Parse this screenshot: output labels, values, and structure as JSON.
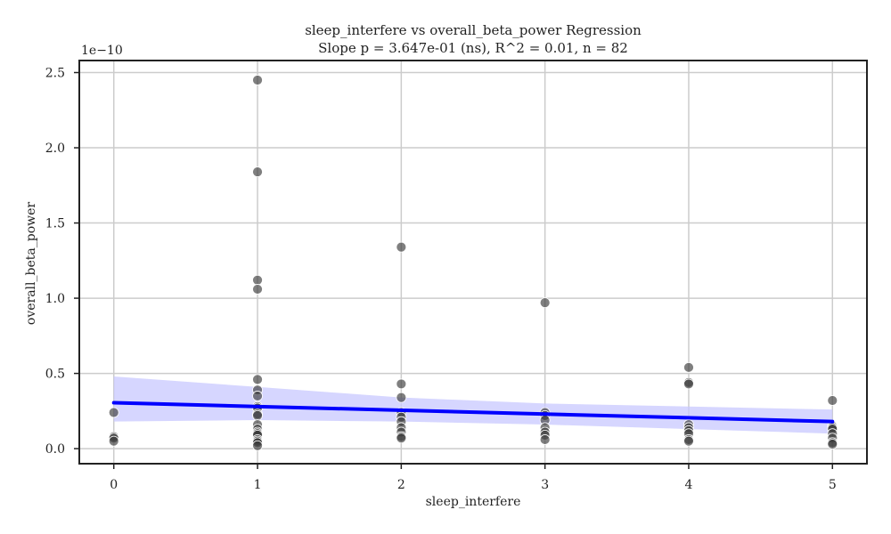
{
  "chart_data": {
    "type": "scatter",
    "title_line1": "sleep_interfere vs overall_beta_power Regression",
    "title_line2": "Slope p = 3.647e-01 (ns), R^2 = 0.01, n = 82",
    "xlabel": "sleep_interfere",
    "ylabel": "overall_beta_power",
    "y_exponent_label": "1e−10",
    "xlim": [
      -0.24,
      5.24
    ],
    "ylim": [
      -0.1,
      2.58
    ],
    "x_ticks": [
      0,
      1,
      2,
      3,
      4,
      5
    ],
    "x_tick_labels": [
      "0",
      "1",
      "2",
      "3",
      "4",
      "5"
    ],
    "y_ticks": [
      0.0,
      0.5,
      1.0,
      1.5,
      2.0,
      2.5
    ],
    "y_tick_labels": [
      "0.0",
      "0.5",
      "1.0",
      "1.5",
      "2.0",
      "2.5"
    ],
    "grid": true,
    "colors": {
      "points": "#3a3a3a",
      "regression_line": "#0000ff",
      "confidence_band": "#c8c8ff",
      "grid": "#cccccc",
      "axes": "#222222"
    },
    "points": [
      {
        "x": 0,
        "y": 0.24
      },
      {
        "x": 0,
        "y": 0.08
      },
      {
        "x": 0,
        "y": 0.07
      },
      {
        "x": 0,
        "y": 0.05
      },
      {
        "x": 1,
        "y": 2.45
      },
      {
        "x": 1,
        "y": 1.84
      },
      {
        "x": 1,
        "y": 1.12
      },
      {
        "x": 1,
        "y": 1.06
      },
      {
        "x": 1,
        "y": 0.46
      },
      {
        "x": 1,
        "y": 0.39
      },
      {
        "x": 1,
        "y": 0.35
      },
      {
        "x": 1,
        "y": 0.28
      },
      {
        "x": 1,
        "y": 0.27
      },
      {
        "x": 1,
        "y": 0.23
      },
      {
        "x": 1,
        "y": 0.22
      },
      {
        "x": 1,
        "y": 0.16
      },
      {
        "x": 1,
        "y": 0.13
      },
      {
        "x": 1,
        "y": 0.11
      },
      {
        "x": 1,
        "y": 0.1
      },
      {
        "x": 1,
        "y": 0.09
      },
      {
        "x": 1,
        "y": 0.06
      },
      {
        "x": 1,
        "y": 0.05
      },
      {
        "x": 1,
        "y": 0.04
      },
      {
        "x": 1,
        "y": 0.02
      },
      {
        "x": 2,
        "y": 1.34
      },
      {
        "x": 2,
        "y": 0.43
      },
      {
        "x": 2,
        "y": 0.34
      },
      {
        "x": 2,
        "y": 0.24
      },
      {
        "x": 2,
        "y": 0.21
      },
      {
        "x": 2,
        "y": 0.18
      },
      {
        "x": 2,
        "y": 0.14
      },
      {
        "x": 2,
        "y": 0.11
      },
      {
        "x": 2,
        "y": 0.08
      },
      {
        "x": 2,
        "y": 0.07
      },
      {
        "x": 3,
        "y": 0.97
      },
      {
        "x": 3,
        "y": 0.24
      },
      {
        "x": 3,
        "y": 0.22
      },
      {
        "x": 3,
        "y": 0.19
      },
      {
        "x": 3,
        "y": 0.14
      },
      {
        "x": 3,
        "y": 0.11
      },
      {
        "x": 3,
        "y": 0.09
      },
      {
        "x": 3,
        "y": 0.06
      },
      {
        "x": 4,
        "y": 0.54
      },
      {
        "x": 4,
        "y": 0.44
      },
      {
        "x": 4,
        "y": 0.43
      },
      {
        "x": 4,
        "y": 0.16
      },
      {
        "x": 4,
        "y": 0.14
      },
      {
        "x": 4,
        "y": 0.12
      },
      {
        "x": 4,
        "y": 0.1
      },
      {
        "x": 4,
        "y": 0.06
      },
      {
        "x": 4,
        "y": 0.05
      },
      {
        "x": 5,
        "y": 0.32
      },
      {
        "x": 5,
        "y": 0.15
      },
      {
        "x": 5,
        "y": 0.14
      },
      {
        "x": 5,
        "y": 0.13
      },
      {
        "x": 5,
        "y": 0.1
      },
      {
        "x": 5,
        "y": 0.07
      },
      {
        "x": 5,
        "y": 0.04
      },
      {
        "x": 5,
        "y": 0.03
      }
    ],
    "regression": {
      "x": [
        0,
        5
      ],
      "y": [
        0.305,
        0.18
      ]
    },
    "confidence_band": {
      "x": [
        0,
        1,
        2,
        3,
        4,
        5
      ],
      "upper": [
        0.48,
        0.41,
        0.34,
        0.3,
        0.28,
        0.26
      ],
      "lower": [
        0.18,
        0.19,
        0.18,
        0.16,
        0.13,
        0.1
      ]
    }
  }
}
